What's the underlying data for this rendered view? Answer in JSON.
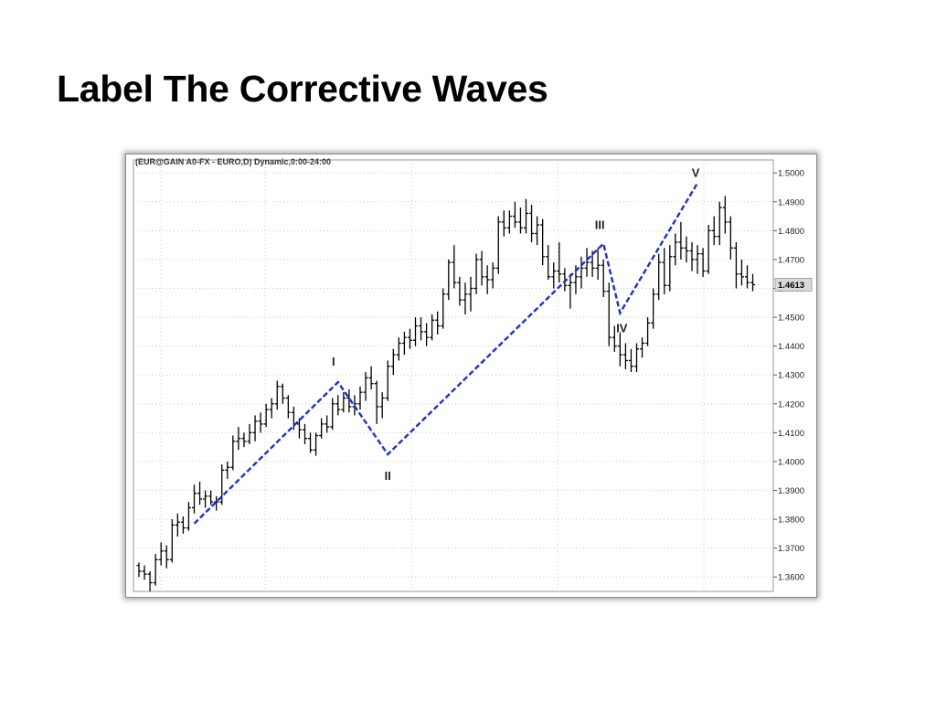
{
  "slide": {
    "title": "Label The Corrective Waves"
  },
  "chart_data": {
    "type": "ohlc",
    "header": "(EUR@GAIN A0-FX - EURO,D) Dynamic,0:00-24:00",
    "ylim": [
      1.355,
      1.5045
    ],
    "y_ticks": [
      "1.5000",
      "1.4900",
      "1.4800",
      "1.4700",
      "1.4600",
      "1.4500",
      "1.4400",
      "1.4300",
      "1.4200",
      "1.4100",
      "1.4000",
      "1.3900",
      "1.3800",
      "1.3700",
      "1.3600"
    ],
    "last_price": "1.4613",
    "grid": true,
    "colors": {
      "bars": "#000000",
      "wave": "#1f2fd0",
      "last_price_box": "#d9d9d9"
    },
    "wave_points": [
      {
        "label": "",
        "bar": 10,
        "price": 1.3785
      },
      {
        "label": "I",
        "bar": 36,
        "price": 1.4275
      },
      {
        "label": "II",
        "bar": 45,
        "price": 1.4025
      },
      {
        "label": "III",
        "bar": 84,
        "price": 1.4755
      },
      {
        "label": "IV",
        "bar": 87,
        "price": 1.4515
      },
      {
        "label": "V",
        "bar": 101,
        "price": 1.4965
      }
    ],
    "ohlc": [
      [
        1.364,
        1.365,
        1.36,
        1.362
      ],
      [
        1.362,
        1.364,
        1.359,
        1.361
      ],
      [
        1.361,
        1.362,
        1.355,
        1.358
      ],
      [
        1.358,
        1.368,
        1.357,
        1.366
      ],
      [
        1.366,
        1.372,
        1.364,
        1.369
      ],
      [
        1.369,
        1.371,
        1.363,
        1.366
      ],
      [
        1.366,
        1.38,
        1.365,
        1.378
      ],
      [
        1.378,
        1.382,
        1.374,
        1.379
      ],
      [
        1.379,
        1.381,
        1.375,
        1.377
      ],
      [
        1.377,
        1.386,
        1.376,
        1.384
      ],
      [
        1.384,
        1.392,
        1.382,
        1.389
      ],
      [
        1.389,
        1.393,
        1.385,
        1.387
      ],
      [
        1.387,
        1.39,
        1.384,
        1.388
      ],
      [
        1.388,
        1.39,
        1.385,
        1.386
      ],
      [
        1.386,
        1.388,
        1.383,
        1.386
      ],
      [
        1.386,
        1.399,
        1.385,
        1.397
      ],
      [
        1.397,
        1.4,
        1.394,
        1.398
      ],
      [
        1.398,
        1.409,
        1.397,
        1.407
      ],
      [
        1.407,
        1.412,
        1.404,
        1.408
      ],
      [
        1.408,
        1.41,
        1.405,
        1.407
      ],
      [
        1.407,
        1.413,
        1.406,
        1.41
      ],
      [
        1.41,
        1.416,
        1.407,
        1.414
      ],
      [
        1.414,
        1.417,
        1.41,
        1.413
      ],
      [
        1.413,
        1.42,
        1.412,
        1.418
      ],
      [
        1.418,
        1.422,
        1.415,
        1.42
      ],
      [
        1.42,
        1.428,
        1.418,
        1.426
      ],
      [
        1.426,
        1.427,
        1.42,
        1.422
      ],
      [
        1.422,
        1.423,
        1.415,
        1.417
      ],
      [
        1.417,
        1.419,
        1.411,
        1.413
      ],
      [
        1.413,
        1.415,
        1.408,
        1.411
      ],
      [
        1.411,
        1.413,
        1.406,
        1.408
      ],
      [
        1.408,
        1.41,
        1.403,
        1.404
      ],
      [
        1.404,
        1.41,
        1.402,
        1.409
      ],
      [
        1.409,
        1.415,
        1.408,
        1.413
      ],
      [
        1.413,
        1.416,
        1.41,
        1.412
      ],
      [
        1.412,
        1.422,
        1.411,
        1.42
      ],
      [
        1.42,
        1.423,
        1.416,
        1.418
      ],
      [
        1.418,
        1.424,
        1.417,
        1.422
      ],
      [
        1.422,
        1.425,
        1.417,
        1.419
      ],
      [
        1.419,
        1.423,
        1.416,
        1.42
      ],
      [
        1.42,
        1.426,
        1.418,
        1.424
      ],
      [
        1.424,
        1.431,
        1.421,
        1.429
      ],
      [
        1.429,
        1.433,
        1.425,
        1.427
      ],
      [
        1.427,
        1.428,
        1.413,
        1.419
      ],
      [
        1.419,
        1.424,
        1.415,
        1.422
      ],
      [
        1.422,
        1.435,
        1.421,
        1.433
      ],
      [
        1.433,
        1.439,
        1.43,
        1.437
      ],
      [
        1.437,
        1.443,
        1.435,
        1.441
      ],
      [
        1.441,
        1.445,
        1.437,
        1.443
      ],
      [
        1.443,
        1.446,
        1.439,
        1.442
      ],
      [
        1.442,
        1.45,
        1.44,
        1.447
      ],
      [
        1.447,
        1.45,
        1.442,
        1.445
      ],
      [
        1.445,
        1.448,
        1.44,
        1.443
      ],
      [
        1.443,
        1.451,
        1.442,
        1.449
      ],
      [
        1.449,
        1.452,
        1.444,
        1.447
      ],
      [
        1.447,
        1.46,
        1.446,
        1.458
      ],
      [
        1.458,
        1.47,
        1.456,
        1.469
      ],
      [
        1.469,
        1.475,
        1.46,
        1.462
      ],
      [
        1.462,
        1.464,
        1.454,
        1.456
      ],
      [
        1.456,
        1.462,
        1.451,
        1.458
      ],
      [
        1.458,
        1.464,
        1.452,
        1.46
      ],
      [
        1.46,
        1.472,
        1.458,
        1.47
      ],
      [
        1.47,
        1.473,
        1.461,
        1.464
      ],
      [
        1.464,
        1.468,
        1.458,
        1.463
      ],
      [
        1.463,
        1.469,
        1.46,
        1.467
      ],
      [
        1.467,
        1.485,
        1.465,
        1.483
      ],
      [
        1.483,
        1.487,
        1.478,
        1.481
      ],
      [
        1.481,
        1.487,
        1.479,
        1.485
      ],
      [
        1.485,
        1.49,
        1.481,
        1.483
      ],
      [
        1.483,
        1.488,
        1.479,
        1.481
      ],
      [
        1.481,
        1.491,
        1.479,
        1.486
      ],
      [
        1.486,
        1.489,
        1.476,
        1.479
      ],
      [
        1.479,
        1.485,
        1.475,
        1.482
      ],
      [
        1.482,
        1.484,
        1.468,
        1.471
      ],
      [
        1.471,
        1.475,
        1.463,
        1.464
      ],
      [
        1.464,
        1.469,
        1.46,
        1.466
      ],
      [
        1.466,
        1.476,
        1.462,
        1.465
      ],
      [
        1.465,
        1.467,
        1.459,
        1.461
      ],
      [
        1.461,
        1.465,
        1.453,
        1.462
      ],
      [
        1.462,
        1.468,
        1.458,
        1.464
      ],
      [
        1.464,
        1.471,
        1.46,
        1.467
      ],
      [
        1.467,
        1.474,
        1.464,
        1.469
      ],
      [
        1.469,
        1.473,
        1.464,
        1.467
      ],
      [
        1.467,
        1.474,
        1.463,
        1.468
      ],
      [
        1.468,
        1.47,
        1.457,
        1.459
      ],
      [
        1.459,
        1.462,
        1.44,
        1.443
      ],
      [
        1.443,
        1.447,
        1.438,
        1.44
      ],
      [
        1.44,
        1.445,
        1.433,
        1.437
      ],
      [
        1.437,
        1.441,
        1.432,
        1.435
      ],
      [
        1.435,
        1.439,
        1.431,
        1.433
      ],
      [
        1.433,
        1.441,
        1.431,
        1.439
      ],
      [
        1.439,
        1.443,
        1.436,
        1.441
      ],
      [
        1.441,
        1.45,
        1.44,
        1.448
      ],
      [
        1.448,
        1.46,
        1.446,
        1.458
      ],
      [
        1.458,
        1.472,
        1.456,
        1.469
      ],
      [
        1.469,
        1.474,
        1.458,
        1.461
      ],
      [
        1.461,
        1.475,
        1.459,
        1.471
      ],
      [
        1.471,
        1.479,
        1.468,
        1.476
      ],
      [
        1.476,
        1.483,
        1.47,
        1.474
      ],
      [
        1.474,
        1.478,
        1.469,
        1.473
      ],
      [
        1.473,
        1.476,
        1.466,
        1.47
      ],
      [
        1.47,
        1.475,
        1.465,
        1.472
      ],
      [
        1.472,
        1.474,
        1.464,
        1.466
      ],
      [
        1.466,
        1.482,
        1.465,
        1.48
      ],
      [
        1.48,
        1.485,
        1.475,
        1.478
      ],
      [
        1.478,
        1.49,
        1.475,
        1.488
      ],
      [
        1.488,
        1.492,
        1.479,
        1.483
      ],
      [
        1.483,
        1.485,
        1.47,
        1.474
      ],
      [
        1.474,
        1.476,
        1.46,
        1.465
      ],
      [
        1.465,
        1.47,
        1.461,
        1.464
      ],
      [
        1.464,
        1.468,
        1.46,
        1.462
      ],
      [
        1.462,
        1.465,
        1.459,
        1.4613
      ]
    ]
  }
}
